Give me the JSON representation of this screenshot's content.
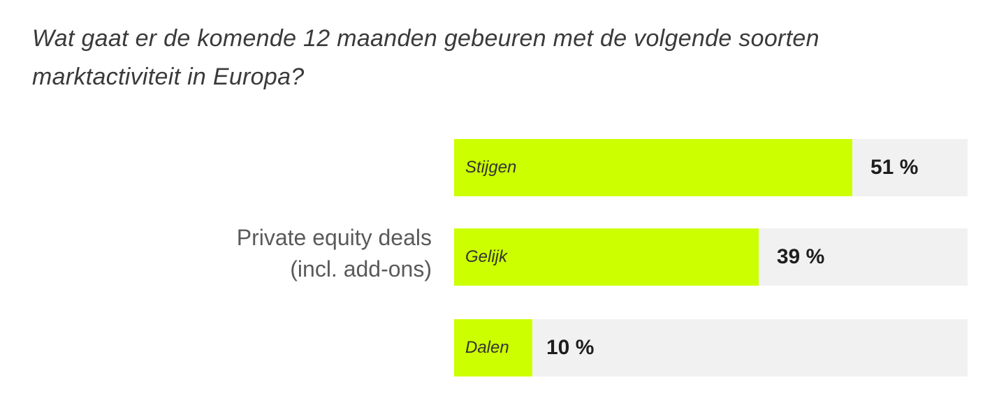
{
  "chart_data": {
    "type": "bar",
    "orientation": "horizontal",
    "title": "Wat gaat er de komende 12 maanden gebeuren met de volgende soorten marktactiviteit in Europa?",
    "group_label": [
      "Private equity deals",
      "(incl. add-ons)"
    ],
    "categories": [
      "Stijgen",
      "Gelijk",
      "Dalen"
    ],
    "values": [
      51,
      39,
      10
    ],
    "value_labels": [
      "51 %",
      "39 %",
      "10 %"
    ],
    "unit": "%",
    "xlim": [
      0,
      100
    ],
    "grid": false,
    "colors": {
      "fill": "#ccff00",
      "track": "#f1f1f1"
    }
  }
}
